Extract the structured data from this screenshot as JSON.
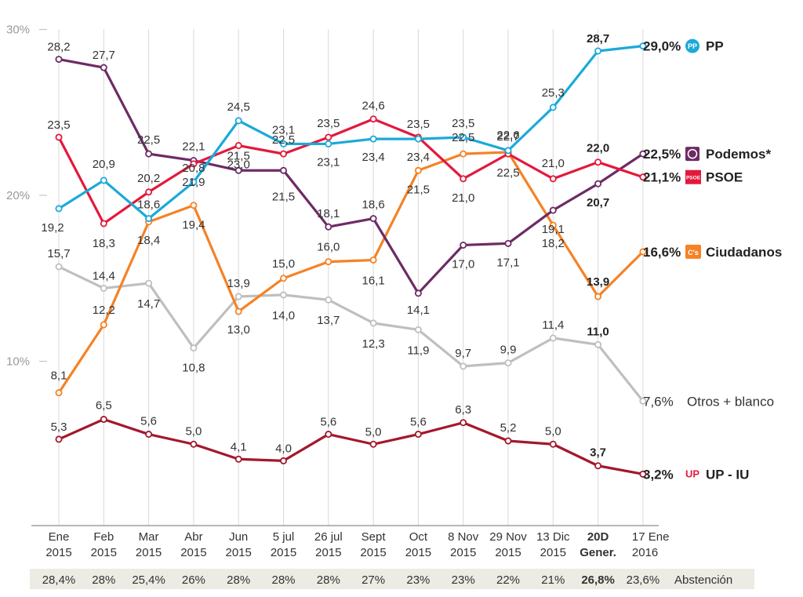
{
  "chart_data": {
    "type": "line",
    "title": "",
    "ylabel": "",
    "ylim": [
      0,
      30
    ],
    "yticks": [
      {
        "value": 10,
        "label": "10%"
      },
      {
        "value": 20,
        "label": "20%"
      },
      {
        "value": 30,
        "label": "30%"
      }
    ],
    "categories": [
      {
        "line1": "Ene",
        "line2": "2015",
        "bold": false
      },
      {
        "line1": "Feb",
        "line2": "2015",
        "bold": false
      },
      {
        "line1": "Mar",
        "line2": "2015",
        "bold": false
      },
      {
        "line1": "Abr",
        "line2": "2015",
        "bold": false
      },
      {
        "line1": "Jun",
        "line2": "2015",
        "bold": false
      },
      {
        "line1": "5 jul",
        "line2": "2015",
        "bold": false
      },
      {
        "line1": "26 jul",
        "line2": "2015",
        "bold": false
      },
      {
        "line1": "Sept",
        "line2": "2015",
        "bold": false
      },
      {
        "line1": "Oct",
        "line2": "2015",
        "bold": false
      },
      {
        "line1": "8 Nov",
        "line2": "2015",
        "bold": false
      },
      {
        "line1": "29 Nov",
        "line2": "2015",
        "bold": false
      },
      {
        "line1": "13 Dic",
        "line2": "2015",
        "bold": false
      },
      {
        "line1": "20D",
        "line2": "Gener.",
        "bold": true
      },
      {
        "line1": "17 Ene",
        "line2": "2016",
        "bold": false
      }
    ],
    "series": [
      {
        "name": "PP",
        "color": "#1aaad9",
        "icon": "pp-logo-icon",
        "values": [
          19.2,
          20.9,
          18.6,
          20.8,
          24.5,
          23.1,
          23.1,
          23.4,
          23.4,
          23.5,
          22.7,
          25.3,
          28.7,
          29.0
        ],
        "labels": [
          "19,2",
          "20,9",
          "18,6",
          "20,8",
          "24,5",
          "23,1",
          "23,1",
          "23,4",
          "23,4",
          "23,5",
          "22,7",
          "25,3",
          "28,7",
          null
        ],
        "final_label": "29,0%"
      },
      {
        "name": "Podemos*",
        "color": "#6d2b65",
        "icon": "podemos-logo-icon",
        "values": [
          28.2,
          27.7,
          22.5,
          22.1,
          21.5,
          21.5,
          18.1,
          18.6,
          14.1,
          17.0,
          17.1,
          19.1,
          20.7,
          22.5
        ],
        "labels": [
          "28,2",
          "27,7",
          "22,5",
          "22,1",
          "21,5",
          "21,5",
          "18,1",
          "18,6",
          "14,1",
          "17,0",
          "17,1",
          "19,1",
          "20,7",
          null
        ],
        "final_label": "22,5%"
      },
      {
        "name": "PSOE",
        "color": "#e3193b",
        "icon": "psoe-logo-icon",
        "values": [
          23.5,
          18.3,
          20.2,
          21.9,
          23.0,
          22.5,
          23.5,
          24.6,
          23.5,
          21.0,
          22.5,
          21.0,
          22.0,
          21.1
        ],
        "labels": [
          "23,5",
          "18,3",
          "20,2",
          "21,9",
          "23,0",
          "22,5",
          "23,5",
          "24,6",
          "23,5",
          "21,0",
          "22,5",
          "21,0",
          "22,0",
          null
        ],
        "final_label": "21,1%"
      },
      {
        "name": "Ciudadanos",
        "color": "#f58225",
        "icon": "ciudadanos-logo-icon",
        "values": [
          8.1,
          12.2,
          18.4,
          19.4,
          13.0,
          15.0,
          16.0,
          16.1,
          21.5,
          22.5,
          22.6,
          18.2,
          13.9,
          16.6
        ],
        "labels": [
          "8,1",
          "12,2",
          "18,4",
          "19,4",
          "13,0",
          "15,0",
          "16,0",
          "16,1",
          "21,5",
          "22,5",
          "22,6",
          "18,2",
          "13,9",
          null
        ],
        "final_label": "16,6%"
      },
      {
        "name": "Otros + blanco",
        "color": "#bfbfbf",
        "icon": "",
        "values": [
          15.7,
          14.4,
          14.7,
          10.8,
          13.9,
          14.0,
          13.7,
          12.3,
          11.9,
          9.7,
          9.9,
          11.4,
          11.0,
          7.6
        ],
        "labels": [
          "15,7",
          "14,4",
          "14,7",
          "10,8",
          "13,9",
          "14,0",
          "13,7",
          "12,3",
          "11,9",
          "9,7",
          "9,9",
          "11,4",
          "11,0",
          null
        ],
        "final_label": "7,6%"
      },
      {
        "name": "UP - IU",
        "color": "#a3182c",
        "icon": "up-logo-icon",
        "values": [
          5.3,
          6.5,
          5.6,
          5.0,
          4.1,
          4.0,
          5.6,
          5.0,
          5.6,
          6.3,
          5.2,
          5.0,
          3.7,
          3.2
        ],
        "labels": [
          "5,3",
          "6,5",
          "5,6",
          "5,0",
          "4,1",
          "4,0",
          "5,6",
          "5,0",
          "5,6",
          "6,3",
          "5,2",
          "5,0",
          "3,7",
          null
        ],
        "final_label": "3,2%"
      }
    ],
    "abstention": {
      "label": "Abstención",
      "values": [
        "28,4%",
        "28%",
        "25,4%",
        "26%",
        "28%",
        "28%",
        "28%",
        "27%",
        "23%",
        "23%",
        "22%",
        "21%",
        "26,8%",
        "23,6%"
      ]
    },
    "logo_text": {
      "pp": "PP",
      "psoe": "PSOE",
      "ciudadanos": "C's",
      "up": "UP"
    }
  }
}
